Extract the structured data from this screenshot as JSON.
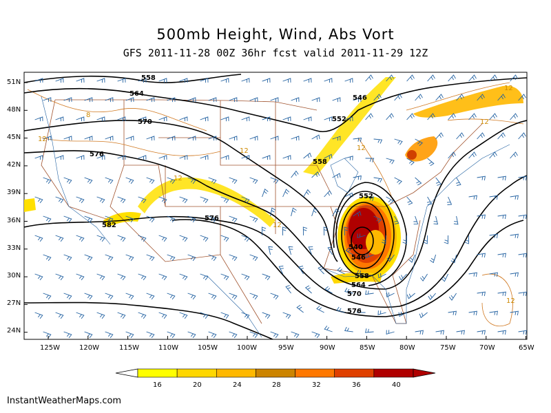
{
  "header": {
    "title": "500mb Height, Wind, Abs Vort",
    "subtitle": "GFS 2011-11-28 00Z 36hr fcst valid 2011-11-29 12Z"
  },
  "axes": {
    "lat_labels": [
      "51N",
      "48N",
      "45N",
      "42N",
      "39N",
      "36N",
      "33N",
      "30N",
      "27N",
      "24N"
    ],
    "lon_labels": [
      "125W",
      "120W",
      "115W",
      "110W",
      "105W",
      "100W",
      "95W",
      "90W",
      "85W",
      "80W",
      "75W",
      "70W",
      "65W"
    ]
  },
  "height_contours": {
    "units": "dam",
    "labels": [
      "558",
      "564",
      "570",
      "576",
      "582",
      "576",
      "552",
      "546",
      "552",
      "558",
      "540",
      "546",
      "558",
      "564",
      "570",
      "576"
    ]
  },
  "colorbar": {
    "variable": "absolute vorticity",
    "tick_labels": [
      "16",
      "20",
      "24",
      "28",
      "32",
      "36",
      "40"
    ],
    "colors": [
      "#ffff00",
      "#ffd700",
      "#ffb800",
      "#cc8400",
      "#ff7800",
      "#e04000",
      "#b00000"
    ]
  },
  "vorticity_labels": [
    "12",
    "12",
    "12",
    "12",
    "12",
    "12",
    "8",
    "12",
    "12"
  ],
  "footer": {
    "source": "InstantWeatherMaps.com"
  }
}
